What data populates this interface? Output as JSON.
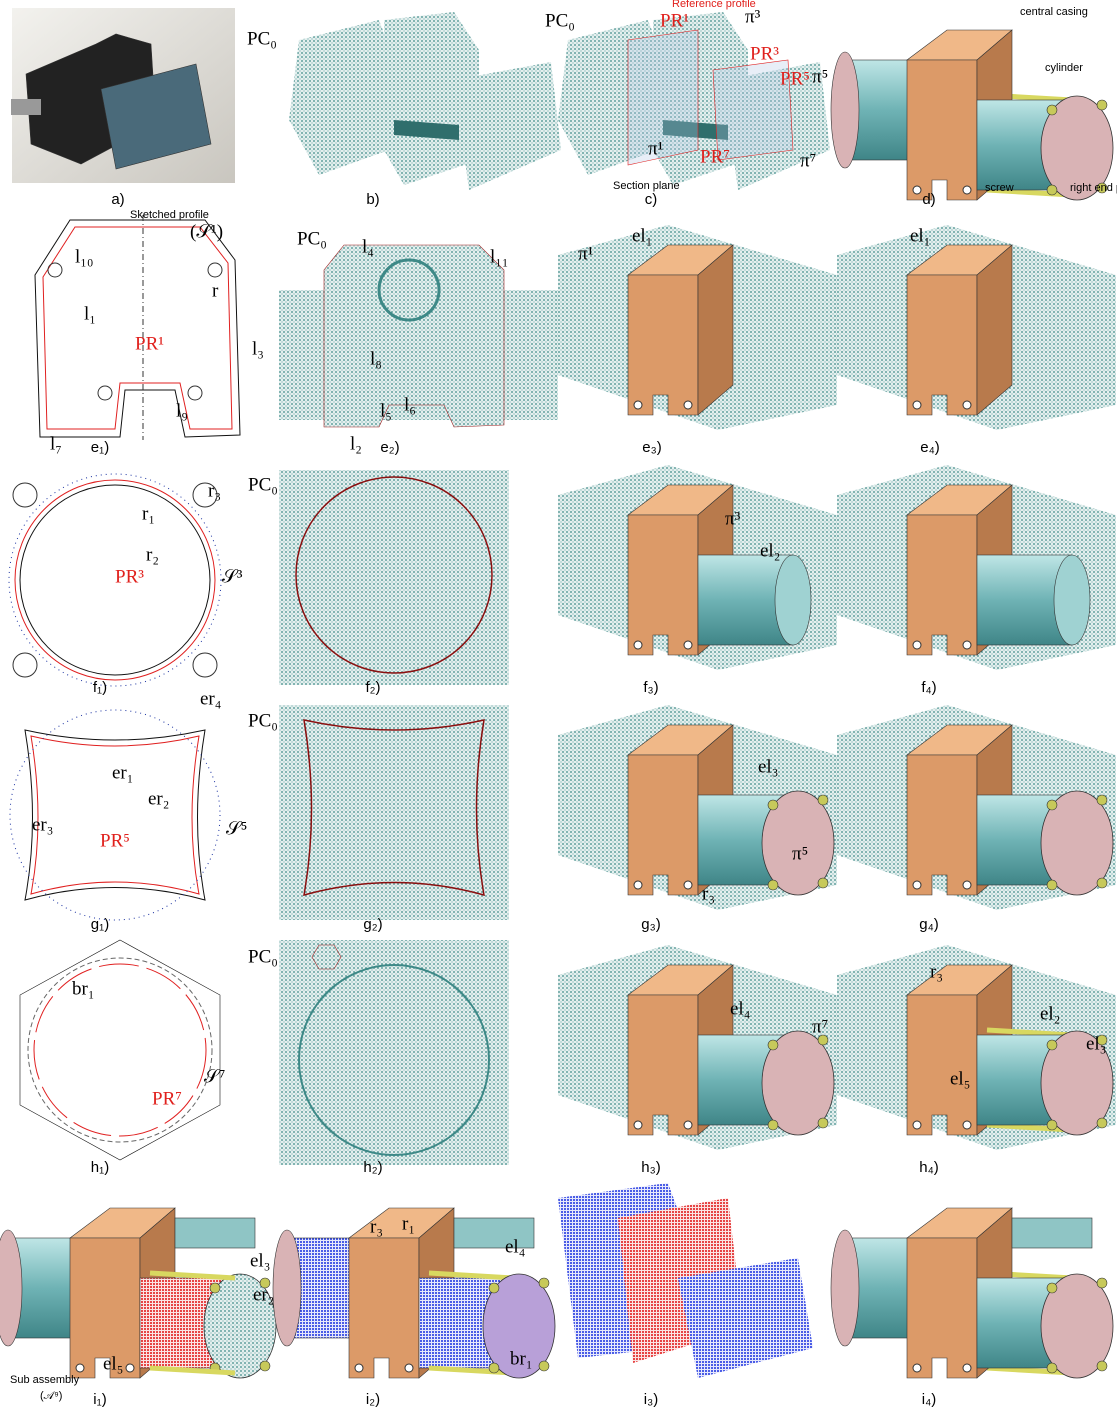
{
  "panels": [
    {
      "caption": "a)",
      "labels": []
    },
    {
      "caption": "b)",
      "labels": [
        "PC₀"
      ]
    },
    {
      "caption": "c)",
      "labels": [
        "PC₀",
        "Reference profile",
        "PR¹",
        "π³",
        "PR³",
        "PR⁵",
        "π⁵",
        "π¹",
        "Section plane",
        "PR⁷",
        "π⁷"
      ]
    },
    {
      "caption": "d)",
      "labels": [
        "central casing",
        "cylinder",
        "screw",
        "right end part"
      ]
    },
    {
      "caption": "e₁)",
      "labels": [
        "Sketched profile",
        "(𝒮¹)",
        "l₁₀",
        "r",
        "l₁",
        "PR¹",
        "l₉",
        "l₇"
      ]
    },
    {
      "caption": "e₂)",
      "labels": [
        "PC₀",
        "l₄",
        "l₁₁",
        "l₃",
        "l₈",
        "l₅",
        "l₆",
        "l₂"
      ]
    },
    {
      "caption": "e₃)",
      "labels": [
        "el₁",
        "π¹"
      ]
    },
    {
      "caption": "e₄)",
      "labels": [
        "el₁"
      ]
    },
    {
      "caption": "f₁)",
      "labels": [
        "r₃",
        "r₁",
        "r₂",
        "PR³",
        "𝒮³"
      ]
    },
    {
      "caption": "f₂)",
      "labels": [
        "PC₀"
      ]
    },
    {
      "caption": "f₃)",
      "labels": [
        "π³",
        "el₂"
      ]
    },
    {
      "caption": "f₄)",
      "labels": []
    },
    {
      "caption": "g₁)",
      "labels": [
        "er₄",
        "er₁",
        "er₂",
        "er₃",
        "PR⁵",
        "𝒮⁵"
      ]
    },
    {
      "caption": "g₂)",
      "labels": [
        "PC₀"
      ]
    },
    {
      "caption": "g₃)",
      "labels": [
        "el₃",
        "r₃",
        "π⁵"
      ]
    },
    {
      "caption": "g₄)",
      "labels": []
    },
    {
      "caption": "h₁)",
      "labels": [
        "br₁",
        "𝒮⁷",
        "PR⁷"
      ]
    },
    {
      "caption": "h₂)",
      "labels": [
        "PC₀"
      ]
    },
    {
      "caption": "h₃)",
      "labels": [
        "el₄",
        "π⁷"
      ]
    },
    {
      "caption": "h₄)",
      "labels": [
        "r₃",
        "el₂",
        "el₃",
        "el₅"
      ]
    },
    {
      "caption": "i₁)",
      "labels": [
        "el₃",
        "er₂",
        "el₅",
        "Sub assembly",
        "(𝒜⁹)"
      ]
    },
    {
      "caption": "i₂)",
      "labels": [
        "r₃",
        "r₁",
        "el₄",
        "br₁"
      ]
    },
    {
      "caption": "i₃)",
      "labels": []
    },
    {
      "caption": "i₄)",
      "labels": []
    }
  ]
}
